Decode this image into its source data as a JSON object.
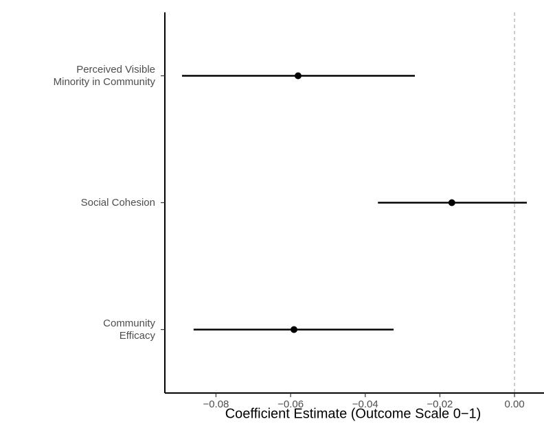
{
  "chart_data": {
    "type": "coefplot",
    "categories": [
      "Perceived Visible\nMinority in Community",
      "Social Cohesion",
      "Community\nEfficacy"
    ],
    "values": [
      -0.058,
      -0.0168,
      -0.0591
    ],
    "lower": [
      -0.0891,
      -0.0366,
      -0.086
    ],
    "upper": [
      -0.0267,
      0.0033,
      -0.0324
    ],
    "color": "#000000",
    "xlabel": "Coefficient Estimate (Outcome Scale 0−1)",
    "xlim": [
      -0.0937,
      0.0079
    ],
    "xticks": [
      {
        "value": -0.08,
        "label": "−0.08"
      },
      {
        "value": -0.06,
        "label": "−0.06"
      },
      {
        "value": -0.04,
        "label": "−0.04"
      },
      {
        "value": -0.02,
        "label": "−0.02"
      },
      {
        "value": 0,
        "label": "0.00"
      }
    ],
    "reference_line": 0
  }
}
